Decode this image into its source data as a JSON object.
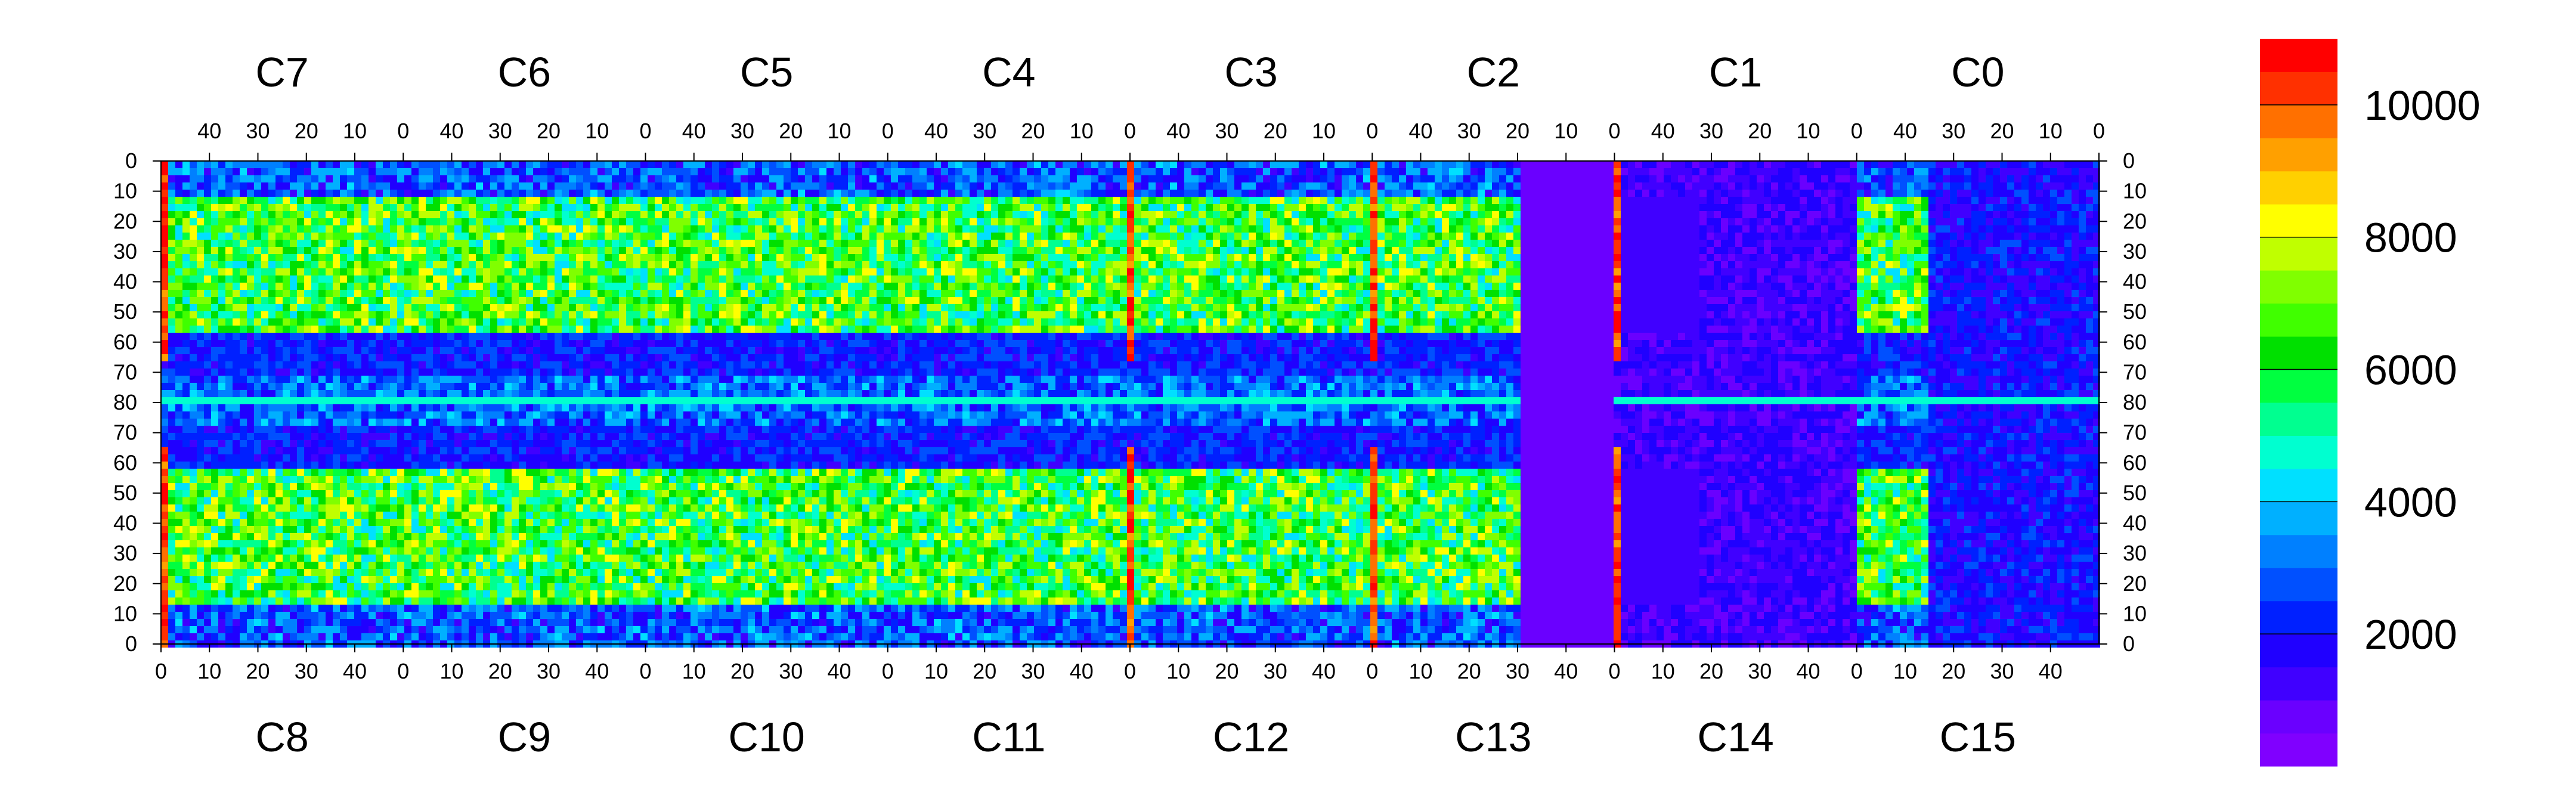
{
  "chart_data": {
    "type": "heatmap",
    "title": "",
    "xlabel": "",
    "ylabel": "",
    "top_chips": [
      "C7",
      "C6",
      "C5",
      "C4",
      "C3",
      "C2",
      "C1",
      "C0"
    ],
    "bottom_chips": [
      "C8",
      "C9",
      "C10",
      "C11",
      "C12",
      "C13",
      "C14",
      "C15"
    ],
    "top_x_ticks": [
      "40",
      "30",
      "20",
      "10",
      "0"
    ],
    "bottom_x_ticks": [
      "0",
      "10",
      "20",
      "30",
      "40"
    ],
    "y_ticks": [
      "0",
      "10",
      "20",
      "30",
      "40",
      "50",
      "60",
      "70",
      "80",
      "70",
      "60",
      "50",
      "40",
      "30",
      "20",
      "10",
      "0"
    ],
    "colorbar": {
      "ticks": [
        "2000",
        "4000",
        "6000",
        "8000",
        "10000"
      ],
      "tick_values": [
        2000,
        4000,
        6000,
        8000,
        10000
      ],
      "range": [
        0,
        11000
      ],
      "colors": [
        "#8000ff",
        "#6a00ff",
        "#4000ff",
        "#2000ff",
        "#0020ff",
        "#0050ff",
        "#0080ff",
        "#00b0ff",
        "#00e0ff",
        "#00ffd0",
        "#00ff90",
        "#00ff40",
        "#00e000",
        "#40ff00",
        "#80ff00",
        "#c0ff00",
        "#ffff00",
        "#ffd000",
        "#ffa000",
        "#ff7000",
        "#ff3000",
        "#ff0000"
      ]
    },
    "chip_columns": 50,
    "chip_rows_per_half": 80,
    "grid": false
  }
}
